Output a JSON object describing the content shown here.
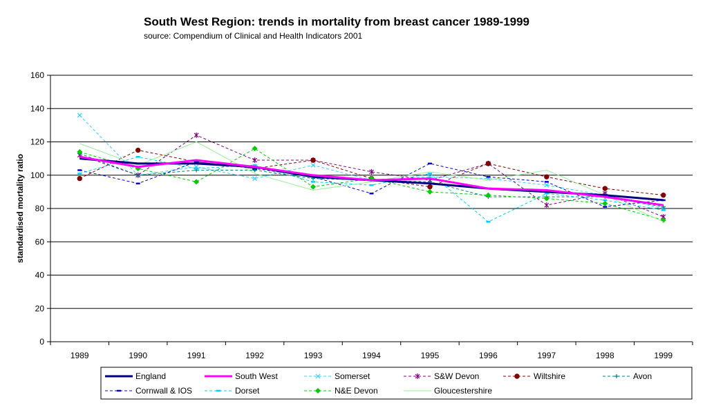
{
  "chart_data": {
    "type": "line",
    "title": "South West Region:  trends in mortality from breast cancer 1989-1999",
    "subtitle": "source: Compendium of Clinical and Health Indicators  2001",
    "ylabel": "standardised mortality ratio",
    "xlabel": "",
    "ylim": [
      0,
      160
    ],
    "yticks": [
      0,
      20,
      40,
      60,
      80,
      100,
      120,
      140,
      160
    ],
    "grid": true,
    "legend_position": "bottom",
    "categories": [
      "1989",
      "1990",
      "1991",
      "1992",
      "1993",
      "1994",
      "1995",
      "1996",
      "1997",
      "1998",
      "1999"
    ],
    "series": [
      {
        "name": "England",
        "color": "#000080",
        "style": "solid-thick",
        "marker": "none",
        "values": [
          110,
          107,
          107,
          105,
          99,
          97,
          95,
          92,
          90,
          88,
          85
        ]
      },
      {
        "name": "South West",
        "color": "#ff00ff",
        "style": "solid-thick",
        "marker": "none",
        "values": [
          111,
          105,
          109,
          105,
          100,
          97,
          98,
          92,
          91,
          87,
          82
        ]
      },
      {
        "name": "Somerset",
        "color": "#33ccff",
        "style": "dashed",
        "marker": "x",
        "values": [
          136,
          100,
          105,
          98,
          106,
          97,
          99,
          98,
          94,
          88,
          80
        ]
      },
      {
        "name": "S&W Devon",
        "color": "#800080",
        "style": "dashed",
        "marker": "star",
        "values": [
          112,
          100,
          124,
          109,
          109,
          102,
          97,
          107,
          82,
          89,
          75
        ]
      },
      {
        "name": "Wiltshire",
        "color": "#800000",
        "style": "dashed",
        "marker": "circle",
        "values": [
          98,
          115,
          108,
          104,
          109,
          98,
          93,
          107,
          99,
          92,
          88
        ]
      },
      {
        "name": "Avon",
        "color": "#008080",
        "style": "dashed",
        "marker": "plus",
        "values": [
          113,
          100,
          103,
          103,
          98,
          97,
          96,
          87,
          87,
          87,
          81
        ]
      },
      {
        "name": "Cornwall & IOS",
        "color": "#0000cc",
        "style": "dashed",
        "marker": "dash",
        "values": [
          103,
          95,
          108,
          104,
          99,
          89,
          107,
          99,
          96,
          81,
          85
        ]
      },
      {
        "name": "Dorset",
        "color": "#00ccff",
        "style": "dashed",
        "marker": "dash",
        "values": [
          101,
          111,
          104,
          106,
          96,
          94,
          101,
          72,
          89,
          85,
          79
        ]
      },
      {
        "name": "N&E Devon",
        "color": "#00cc00",
        "style": "dashed",
        "marker": "diamond",
        "values": [
          114,
          104,
          96,
          116,
          93,
          98,
          90,
          88,
          86,
          83,
          73
        ]
      },
      {
        "name": "Gloucestershire",
        "color": "#99ee99",
        "style": "solid-thin",
        "marker": "none",
        "values": [
          119,
          106,
          120,
          101,
          91,
          96,
          102,
          97,
          103,
          88,
          72
        ]
      }
    ]
  }
}
